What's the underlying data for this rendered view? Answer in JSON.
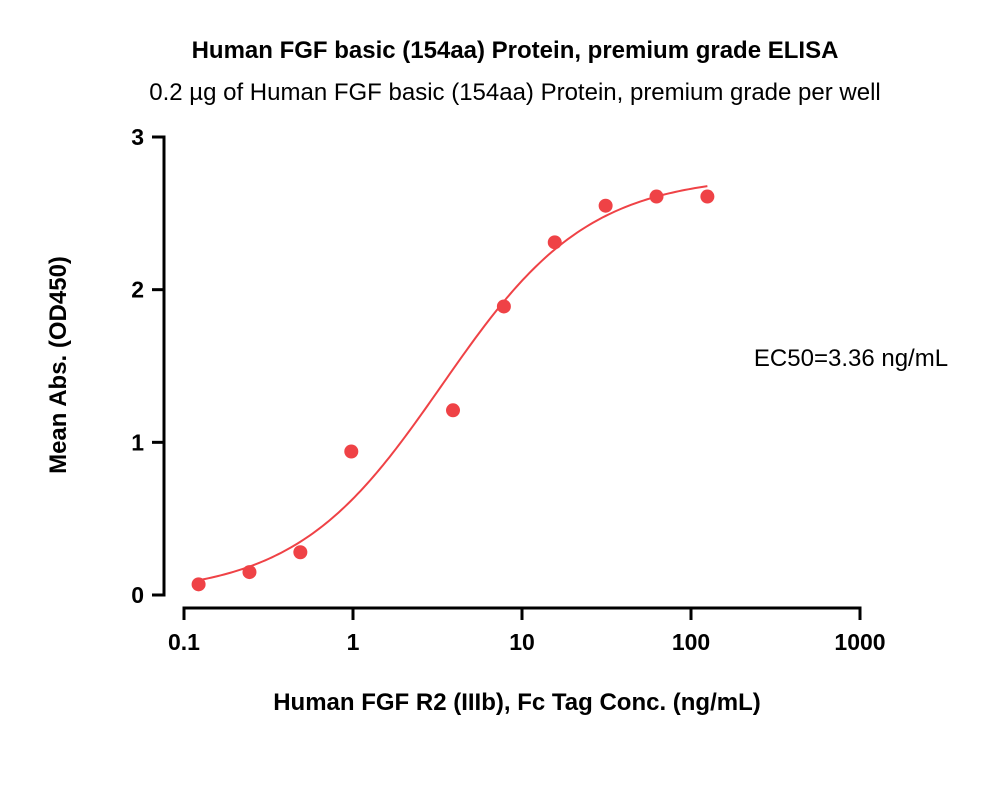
{
  "chart_data": {
    "type": "scatter",
    "title": "Human FGF basic (154aa) Protein, premium grade ELISA",
    "subtitle": "0.2 µg of Human FGF basic (154aa) Protein, premium grade per well",
    "xlabel": "Human FGF R2 (IIIb), Fc Tag Conc. (ng/mL)",
    "ylabel": "Mean Abs. (OD450)",
    "x_scale": "log",
    "xlim": [
      0.1,
      1000
    ],
    "ylim": [
      0,
      3
    ],
    "x_ticks": [
      0.1,
      1,
      10,
      100,
      1000
    ],
    "x_tick_labels": [
      "0.1",
      "1",
      "10",
      "100",
      "1000"
    ],
    "y_ticks": [
      0,
      1,
      2,
      3
    ],
    "y_tick_labels": [
      "0",
      "1",
      "2",
      "3"
    ],
    "grid": false,
    "legend": "none",
    "series": [
      {
        "x": [
          0.122,
          0.244,
          0.488,
          0.977,
          3.906,
          7.813,
          15.625,
          31.25,
          62.5,
          125
        ],
        "y": [
          0.07,
          0.15,
          0.28,
          0.94,
          1.21,
          1.89,
          2.31,
          2.55,
          2.61,
          2.61
        ],
        "color": "#ef4246"
      }
    ],
    "fit_curve": {
      "type": "4PL",
      "bottom": 0.0,
      "top": 2.75,
      "ec50": 3.36,
      "hill": 1.0,
      "x_range": [
        0.122,
        125
      ],
      "color": "#ef4246"
    },
    "annotations": [
      "EC50=3.36 ng/mL"
    ]
  }
}
